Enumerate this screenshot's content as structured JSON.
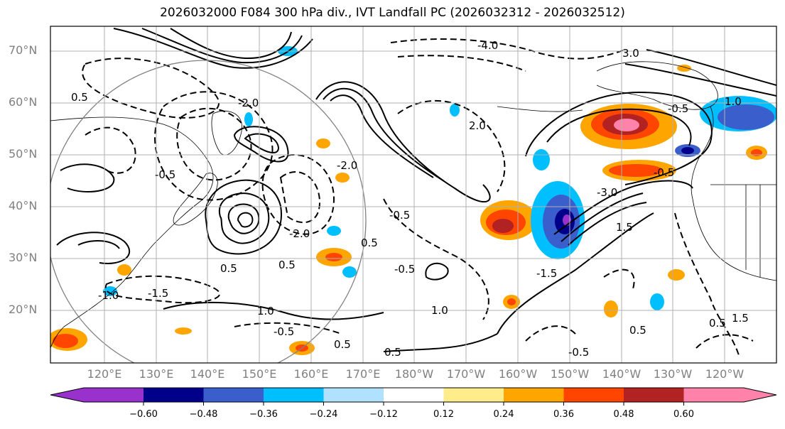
{
  "title": "2026032000 F084 300 hPa div., IVT Landfall PC (2026032312 - 2026032512)",
  "lat_labels": [
    "70°N",
    "60°N",
    "50°N",
    "40°N",
    "30°N",
    "20°N"
  ],
  "lon_labels": [
    "120°E",
    "130°E",
    "140°E",
    "150°E",
    "160°E",
    "170°E",
    "180°W",
    "170°W",
    "160°W",
    "150°W",
    "140°W",
    "130°W",
    "120°W"
  ],
  "colorbar": {
    "ticks": [
      "−0.60",
      "−0.48",
      "−0.36",
      "−0.24",
      "−0.12",
      "0.12",
      "0.24",
      "0.36",
      "0.48",
      "0.60"
    ],
    "colors": [
      "#9932CC",
      "#00008B",
      "#3A5FCD",
      "#00BFFF",
      "#B0E2FF",
      "#FFFFFF",
      "#FFEC8B",
      "#FFA500",
      "#FF4500",
      "#B22222",
      "#FF82AB"
    ]
  },
  "contour_labels": [
    "0.5",
    "0.5",
    "0.5",
    "0.5",
    "-0.5",
    "-0.5",
    "-0.5",
    "-0.5",
    "-0.5",
    "1.0",
    "1.0",
    "1.5",
    "1.5",
    "-1.5",
    "-1.5",
    "-2.0",
    "-2.0",
    "-2.0",
    "3.0",
    "-3.0",
    "-4.0",
    "2.0",
    "-1.0",
    "0.5",
    "-0.5",
    "0.5",
    "0.5",
    "0.5",
    "-0.5",
    "1.0"
  ]
}
